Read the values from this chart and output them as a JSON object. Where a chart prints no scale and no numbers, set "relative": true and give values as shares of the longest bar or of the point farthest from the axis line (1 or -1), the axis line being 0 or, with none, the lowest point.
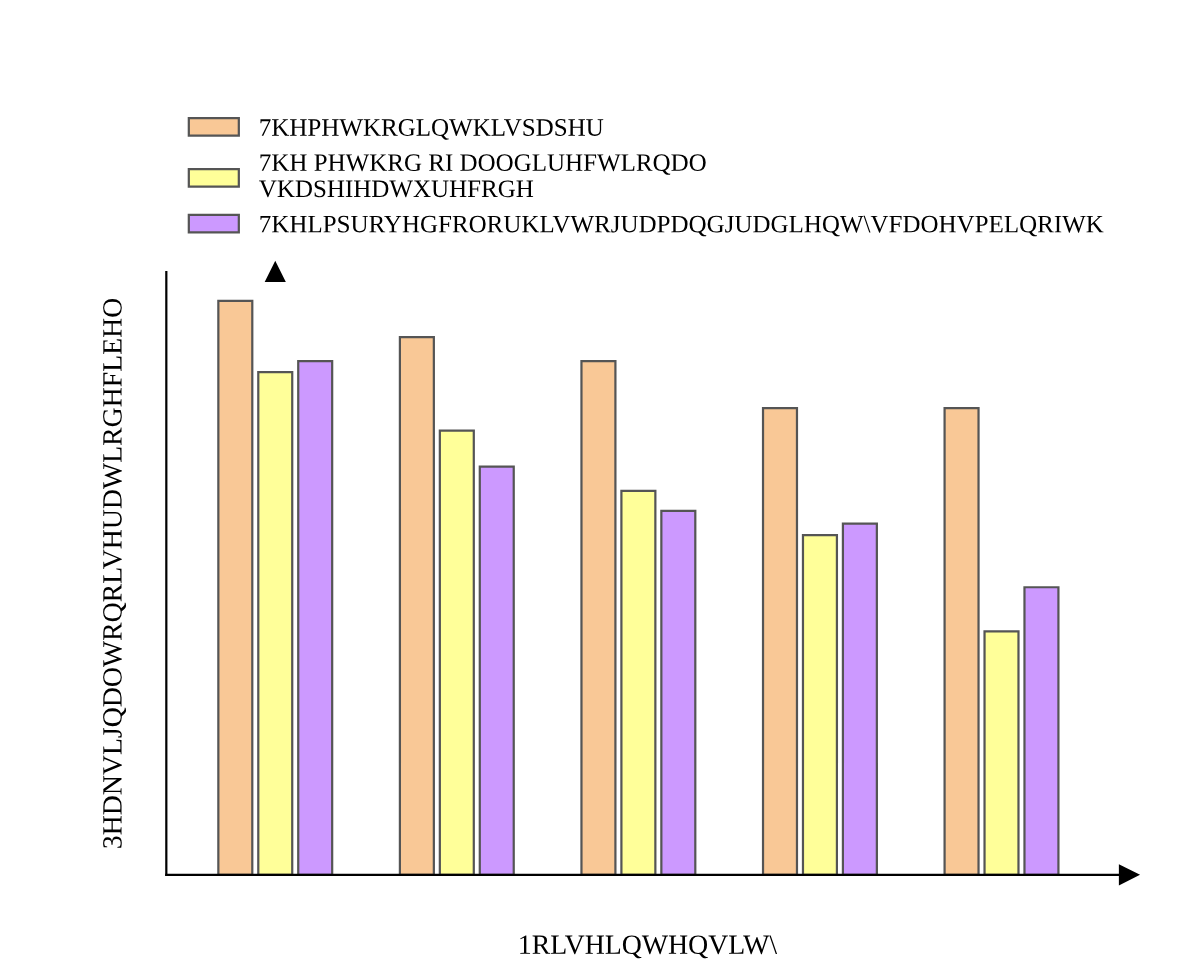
{
  "chart_data": {
    "type": "bar",
    "relative": true,
    "xlabel": "1RLVHLQWHQVLW\\",
    "ylabel": "3HDNVLJQDOWRQRLVHUDWLRGHFLEHO",
    "categories": [
      null,
      null,
      null,
      null,
      null
    ],
    "legend": "top",
    "series": [
      {
        "name": "7KHPHWKRGLQWKLVSDSHU",
        "color": "#f9c896",
        "values": [
          1.0,
          0.937,
          0.895,
          0.813,
          0.813
        ]
      },
      {
        "name": "7KH PHWKRG RI DOOGLUHFWLRQDO\nVKDSHIHDWXUHFRGH",
        "color": "#ffff99",
        "values": [
          0.876,
          0.774,
          0.669,
          0.592,
          0.424
        ]
      },
      {
        "name": "7KHLPSURYHGFRORUKLVWRJUDPDQGJUDGLHQW\\VFDOHVPELQRIWK",
        "color": "#cc99ff",
        "values": [
          0.895,
          0.711,
          0.634,
          0.612,
          0.501
        ]
      }
    ]
  }
}
